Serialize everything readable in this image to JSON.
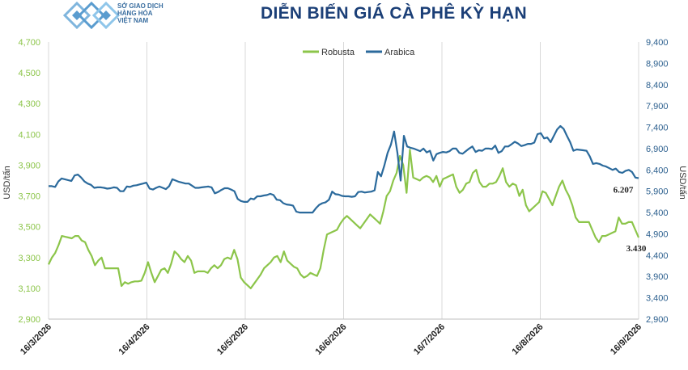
{
  "header": {
    "org_line1": "SỞ GIAO DỊCH",
    "org_line2": "HÀNG HÓA",
    "org_line3": "VIỆT NAM",
    "title": "DIỄN BIẾN GIÁ CÀ PHÊ KỲ HẠN"
  },
  "colors": {
    "robusta": "#8cc54a",
    "arabica": "#2b6a9c",
    "title": "#1b3f77",
    "grid": "#d9d9d9"
  },
  "chart_data": {
    "type": "line",
    "title": "DIỄN BIẾN GIÁ CÀ PHÊ KỲ HẠN",
    "ylabel_left": "USD/tấn",
    "ylabel_right": "USD/tấn",
    "ylim_left": [
      2900,
      4700
    ],
    "ylim_right": [
      2900,
      9400
    ],
    "yticks_left": [
      "2,900",
      "3,100",
      "3,300",
      "3,500",
      "3,700",
      "3,900",
      "4,100",
      "4,300",
      "4,500",
      "4,700"
    ],
    "yticks_right": [
      "2,900",
      "3,400",
      "3,900",
      "4,400",
      "4,900",
      "5,400",
      "5,900",
      "6,400",
      "6,900",
      "7,400",
      "7,900",
      "8,400",
      "8,900",
      "9,400"
    ],
    "x_ticks": [
      "16/3/2026",
      "16/4/2026",
      "16/5/2026",
      "16/6/2026",
      "16/7/2026",
      "16/8/2026",
      "16/9/2026"
    ],
    "legend": [
      "Robusta",
      "Arabica"
    ],
    "legend_position": "top-center",
    "grid": "vertical",
    "end_labels": {
      "arabica": "6.207",
      "robusta": "3.430"
    },
    "series": [
      {
        "name": "Robusta",
        "axis": "left",
        "values": [
          3255,
          3300,
          3330,
          3380,
          3440,
          3435,
          3430,
          3425,
          3440,
          3440,
          3410,
          3400,
          3350,
          3310,
          3250,
          3280,
          3300,
          3230,
          3230,
          3230,
          3230,
          3230,
          3115,
          3140,
          3130,
          3140,
          3145,
          3145,
          3150,
          3200,
          3270,
          3200,
          3140,
          3180,
          3220,
          3230,
          3200,
          3260,
          3340,
          3320,
          3290,
          3270,
          3310,
          3280,
          3200,
          3210,
          3210,
          3210,
          3200,
          3230,
          3250,
          3230,
          3250,
          3290,
          3300,
          3290,
          3350,
          3290,
          3170,
          3140,
          3120,
          3100,
          3130,
          3160,
          3190,
          3230,
          3250,
          3270,
          3300,
          3310,
          3270,
          3340,
          3280,
          3260,
          3240,
          3230,
          3190,
          3170,
          3180,
          3200,
          3190,
          3180,
          3230,
          3350,
          3450,
          3460,
          3470,
          3480,
          3520,
          3550,
          3570,
          3550,
          3530,
          3510,
          3490,
          3520,
          3550,
          3580,
          3560,
          3540,
          3520,
          3600,
          3700,
          3730,
          3800,
          3850,
          3960,
          3900,
          3720,
          4000,
          3820,
          3810,
          3800,
          3820,
          3830,
          3820,
          3790,
          3830,
          3760,
          3810,
          3820,
          3830,
          3840,
          3760,
          3720,
          3740,
          3780,
          3790,
          3850,
          3870,
          3790,
          3760,
          3760,
          3780,
          3780,
          3790,
          3830,
          3880,
          3790,
          3760,
          3780,
          3770,
          3700,
          3740,
          3640,
          3600,
          3620,
          3640,
          3660,
          3730,
          3720,
          3680,
          3640,
          3700,
          3760,
          3800,
          3740,
          3700,
          3640,
          3560,
          3530,
          3530,
          3530,
          3530,
          3480,
          3430,
          3400,
          3440,
          3440,
          3450,
          3460,
          3470,
          3560,
          3520,
          3520,
          3530,
          3530,
          3480,
          3430
        ]
      },
      {
        "name": "Arabica",
        "axis": "right",
        "values": [
          6020,
          6020,
          6000,
          6130,
          6200,
          6180,
          6160,
          6140,
          6270,
          6290,
          6220,
          6130,
          6080,
          6050,
          5980,
          5990,
          5990,
          5980,
          5960,
          5970,
          5990,
          5980,
          5900,
          5900,
          6010,
          6000,
          6030,
          6040,
          6060,
          6080,
          6100,
          5960,
          5940,
          5980,
          6010,
          5980,
          5950,
          6020,
          6180,
          6150,
          6120,
          6100,
          6080,
          6080,
          6030,
          5980,
          5980,
          5990,
          6000,
          6010,
          5990,
          5850,
          5880,
          5930,
          5970,
          5970,
          5940,
          5900,
          5720,
          5670,
          5650,
          5650,
          5730,
          5710,
          5780,
          5780,
          5800,
          5810,
          5840,
          5810,
          5700,
          5690,
          5620,
          5590,
          5580,
          5560,
          5420,
          5400,
          5400,
          5400,
          5400,
          5400,
          5500,
          5580,
          5620,
          5640,
          5700,
          5890,
          5830,
          5820,
          5790,
          5780,
          5780,
          5770,
          5780,
          5880,
          5890,
          5870,
          5880,
          5890,
          5920,
          6350,
          6250,
          6500,
          6800,
          6990,
          7300,
          6800,
          6150,
          7200,
          6950,
          6920,
          6900,
          6870,
          6840,
          6900,
          6810,
          6850,
          6620,
          6770,
          6800,
          6820,
          6810,
          6840,
          6900,
          6900,
          6800,
          6780,
          6840,
          6900,
          6950,
          6820,
          6860,
          6850,
          6900,
          6900,
          6890,
          6970,
          6800,
          6840,
          6950,
          6950,
          7000,
          7060,
          7020,
          6960,
          6980,
          7010,
          7010,
          7040,
          7240,
          7260,
          7140,
          7160,
          7050,
          7200,
          7350,
          7430,
          7360,
          7200,
          7050,
          6850,
          6880,
          6870,
          6860,
          6850,
          6720,
          6540,
          6560,
          6540,
          6500,
          6480,
          6440,
          6400,
          6430,
          6350,
          6330,
          6380,
          6400,
          6350,
          6220,
          6207
        ]
      }
    ]
  }
}
